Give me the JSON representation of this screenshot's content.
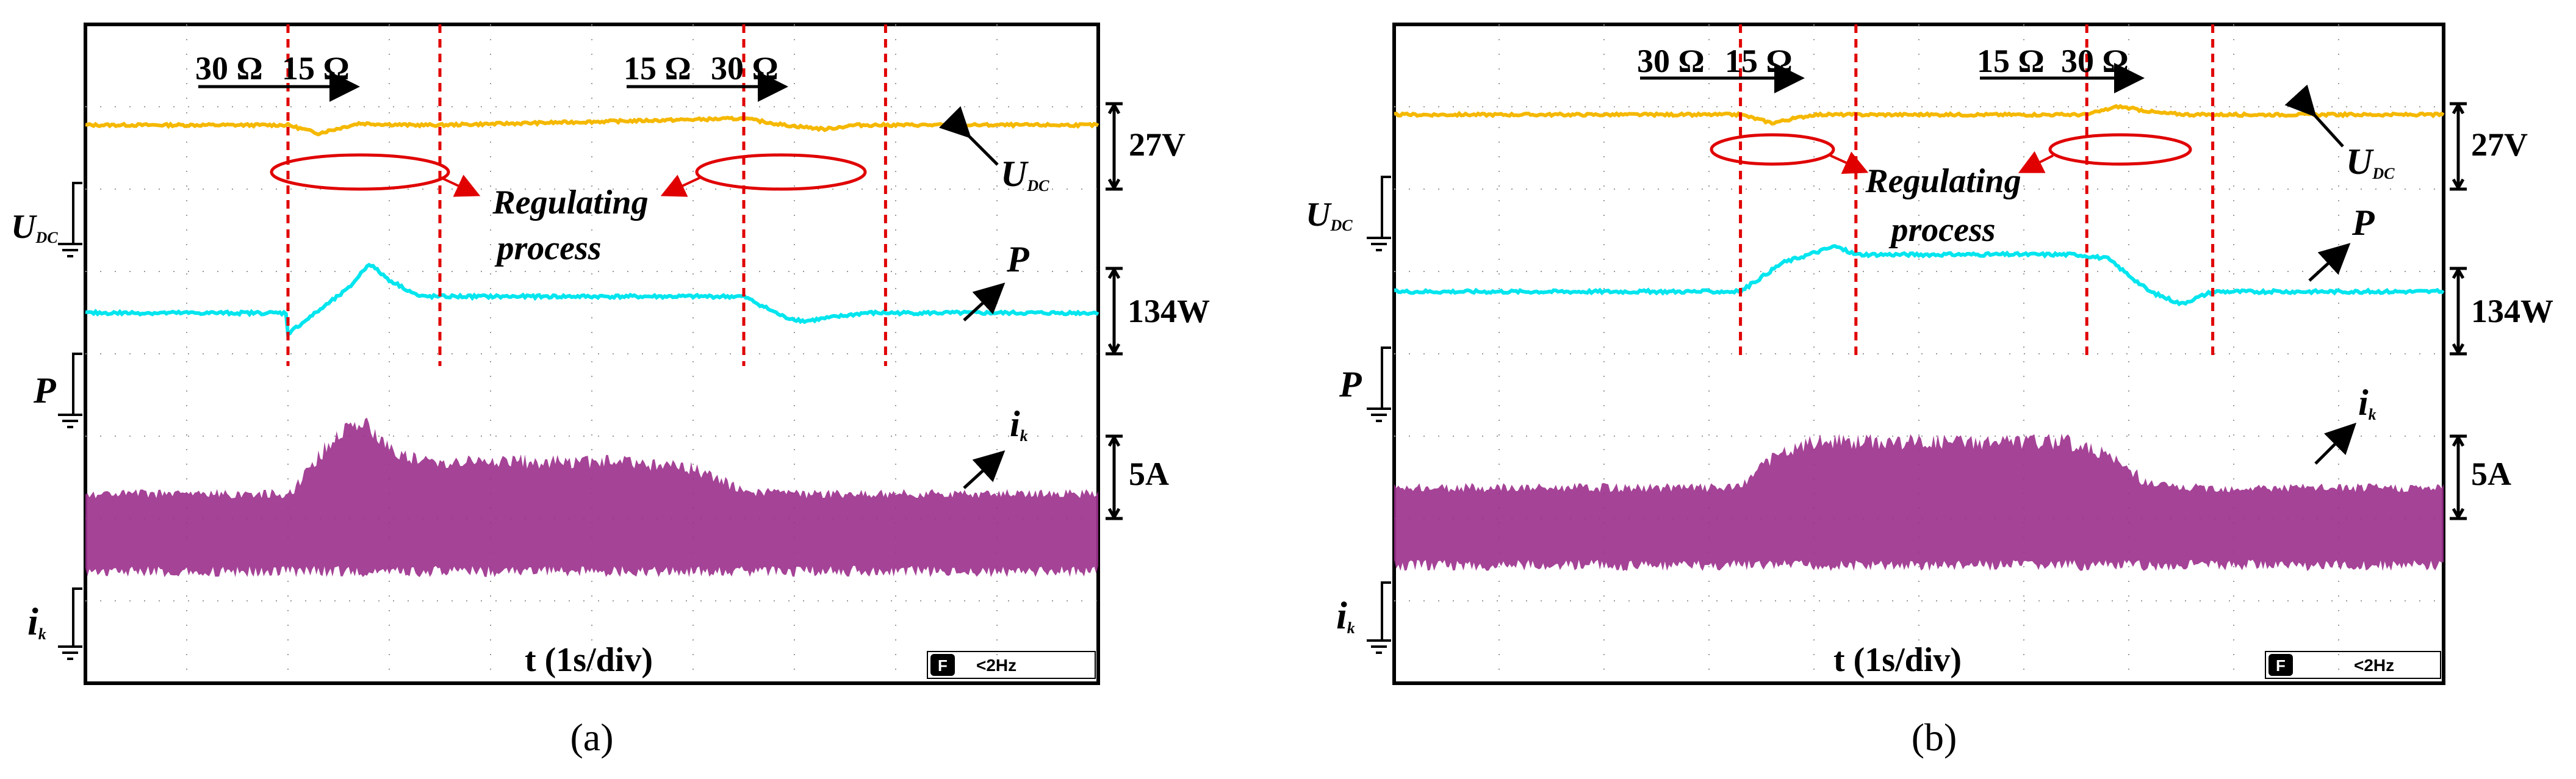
{
  "chart_data": [
    {
      "id": "a",
      "type": "line",
      "caption": "(a)",
      "xlabel": "t (1s/div)",
      "step1": {
        "from": "30 Ω",
        "to": "15 Ω"
      },
      "step2": {
        "from": "15 Ω",
        "to": "30 Ω"
      },
      "annotation": {
        "line1": "Regulating",
        "line2": "process"
      },
      "channels": {
        "udc": {
          "name_main": "U",
          "name_sub": "DC",
          "scale": "27V",
          "color": "#f5b800"
        },
        "p": {
          "name_main": "P",
          "name_sub": "",
          "scale": "134W",
          "color": "#00e5ee"
        },
        "ik": {
          "name_main": "i",
          "name_sub": "k",
          "scale": "5A",
          "color": "#9b2f8c"
        }
      },
      "footer": {
        "icon": "F",
        "text": "<2Hz"
      },
      "traces": {
        "udc": {
          "x_div": [
            0,
            2.0,
            2.3,
            2.7,
            3.2,
            3.5,
            6.5,
            6.9,
            7.3,
            7.6,
            8.0,
            10
          ],
          "y_div": [
            0,
            0,
            -0.1,
            0.02,
            0,
            0,
            0.08,
            0,
            -0.05,
            0,
            0,
            0
          ]
        },
        "p": {
          "x_div": [
            0,
            2.0,
            2.0,
            2.6,
            2.8,
            3.0,
            3.3,
            3.5,
            6.5,
            6.9,
            7.1,
            7.4,
            7.7,
            8.0,
            10
          ],
          "y_div": [
            0,
            0,
            -0.25,
            0.3,
            0.6,
            0.4,
            0.2,
            0.2,
            0.2,
            -0.05,
            -0.1,
            -0.05,
            0,
            0,
            0
          ]
        },
        "ik": {
          "x_div": [
            0,
            2.0,
            2.2,
            2.5,
            2.7,
            3.0,
            3.3,
            3.7,
            5.3,
            6.0,
            6.6,
            7.0,
            10
          ],
          "amp_div": [
            0.9,
            0.9,
            1.3,
            1.8,
            2.0,
            1.6,
            1.4,
            1.4,
            1.4,
            1.3,
            0.95,
            0.9,
            0.9
          ]
        }
      }
    },
    {
      "id": "b",
      "type": "line",
      "caption": "(b)",
      "xlabel": "t (1s/div)",
      "step1": {
        "from": "30 Ω",
        "to": "15 Ω"
      },
      "step2": {
        "from": "15 Ω",
        "to": "30 Ω"
      },
      "annotation": {
        "line1": "Regulating",
        "line2": "process"
      },
      "channels": {
        "udc": {
          "name_main": "U",
          "name_sub": "DC",
          "scale": "27V",
          "color": "#f5b800"
        },
        "p": {
          "name_main": "P",
          "name_sub": "",
          "scale": "134W",
          "color": "#00e5ee"
        },
        "ik": {
          "name_main": "i",
          "name_sub": "k",
          "scale": "5A",
          "color": "#9b2f8c"
        }
      },
      "footer": {
        "icon": "F",
        "text": "<2Hz"
      },
      "traces": {
        "udc": {
          "x_div": [
            0,
            3.3,
            3.6,
            4.0,
            4.4,
            6.6,
            6.9,
            7.3,
            7.6,
            10
          ],
          "y_div": [
            0,
            0,
            -0.1,
            0,
            0,
            0,
            0.1,
            0.02,
            0,
            0
          ]
        },
        "p": {
          "x_div": [
            0,
            3.3,
            3.7,
            4.2,
            4.4,
            6.5,
            6.8,
            7.2,
            7.5,
            7.8,
            10
          ],
          "y_div": [
            0,
            0,
            0.35,
            0.55,
            0.45,
            0.45,
            0.4,
            0,
            -0.15,
            0,
            0
          ]
        },
        "ik": {
          "x_div": [
            0,
            3.3,
            3.5,
            4.0,
            4.4,
            6.4,
            6.8,
            7.2,
            7.5,
            10
          ],
          "amp_div": [
            0.9,
            0.9,
            1.3,
            1.6,
            1.6,
            1.6,
            1.4,
            1.0,
            0.9,
            0.9
          ]
        }
      }
    }
  ]
}
